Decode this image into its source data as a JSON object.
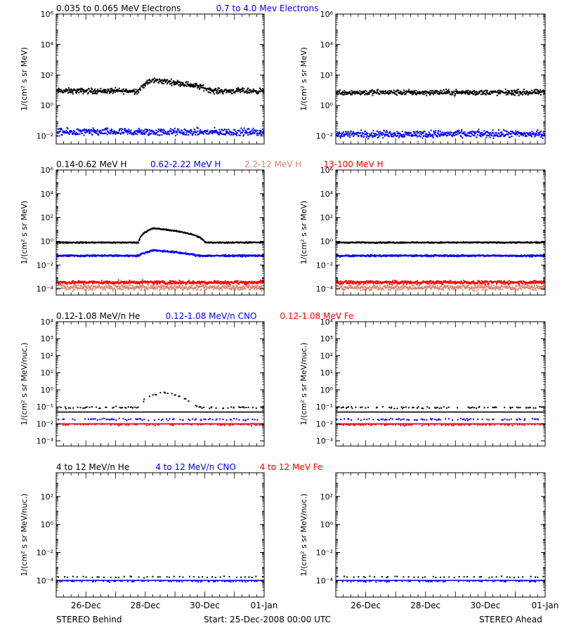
{
  "footer": {
    "left": "STEREO Behind",
    "center": "Start: 25-Dec-2008 00:00 UTC",
    "right": "STEREO Ahead"
  },
  "colors": {
    "black": "#000000",
    "blue": "#0000ff",
    "salmon": "#d8876f",
    "red": "#ff0000",
    "frame": "#000000"
  },
  "chart_data": [
    {
      "type": "scatter",
      "panel": "electrons",
      "labels": [
        {
          "text": "0.035 to 0.065 MeV Electrons",
          "color": "black"
        },
        {
          "text": "0.7 to 4.0 Mev Electrons",
          "color": "blue"
        }
      ],
      "ylabel": "1/(cm² s sr MeV)",
      "yscale": "log",
      "ylim": [
        0.003,
        1000000
      ],
      "yticks": [
        {
          "v": 0.01,
          "label": "10⁻²"
        },
        {
          "v": 1,
          "label": "10⁰"
        },
        {
          "v": 100,
          "label": "10²"
        },
        {
          "v": 10000,
          "label": "10⁴"
        },
        {
          "v": 1000000,
          "label": "10⁶"
        }
      ],
      "xlim": [
        "2008-12-25",
        "2009-01-01"
      ],
      "xticks": [
        "26-Dec",
        "28-Dec",
        "30-Dec",
        "01-Jan"
      ],
      "behind": {
        "series": [
          {
            "color": "black",
            "base": 10,
            "scatter_dex": 0.15,
            "event": {
              "start": "2008-12-27T18:00",
              "peak": "2008-12-28T06:00",
              "end": "2008-12-30T06:00",
              "peak_value": 50
            }
          },
          {
            "color": "blue",
            "base": 0.02,
            "scatter_dex": 0.2
          }
        ]
      },
      "ahead": {
        "series": [
          {
            "color": "black",
            "base": 8,
            "scatter_dex": 0.15
          },
          {
            "color": "blue",
            "base": 0.015,
            "scatter_dex": 0.2
          }
        ]
      }
    },
    {
      "type": "scatter",
      "panel": "protons",
      "labels": [
        {
          "text": "0.14-0.62 MeV H",
          "color": "black"
        },
        {
          "text": "0.62-2.22 MeV H",
          "color": "blue"
        },
        {
          "text": "2.2-12 MeV H",
          "color": "salmon"
        },
        {
          "text": "13-100 MeV H",
          "color": "red"
        }
      ],
      "ylabel": "1/(cm² s sr MeV)",
      "yscale": "log",
      "ylim": [
        3e-05,
        1000000
      ],
      "yticks": [
        {
          "v": 0.0001,
          "label": "10⁻⁴"
        },
        {
          "v": 0.01,
          "label": "10⁻²"
        },
        {
          "v": 1,
          "label": "10⁰"
        },
        {
          "v": 100,
          "label": "10²"
        },
        {
          "v": 10000,
          "label": "10⁴"
        },
        {
          "v": 1000000,
          "label": "10⁶"
        }
      ],
      "xlim": [
        "2008-12-25",
        "2009-01-01"
      ],
      "xticks": [
        "26-Dec",
        "28-Dec",
        "30-Dec",
        "01-Jan"
      ],
      "behind": {
        "series": [
          {
            "color": "black",
            "base": 0.9,
            "scatter_dex": 0.04,
            "event": {
              "start": "2008-12-27T18:00",
              "peak": "2008-12-28T06:00",
              "end": "2008-12-30T00:00",
              "peak_value": 14
            }
          },
          {
            "color": "blue",
            "base": 0.07,
            "scatter_dex": 0.06,
            "event": {
              "start": "2008-12-27T18:00",
              "peak": "2008-12-28T06:00",
              "end": "2008-12-29T18:00",
              "peak_value": 0.2
            }
          },
          {
            "color": "salmon",
            "base": 0.00015,
            "scatter_dex": 0.2
          },
          {
            "color": "red",
            "base": 0.0004,
            "scatter_dex": 0.12
          }
        ]
      },
      "ahead": {
        "series": [
          {
            "color": "black",
            "base": 0.9,
            "scatter_dex": 0.04
          },
          {
            "color": "blue",
            "base": 0.07,
            "scatter_dex": 0.06
          },
          {
            "color": "salmon",
            "base": 0.00015,
            "scatter_dex": 0.2
          },
          {
            "color": "red",
            "base": 0.0004,
            "scatter_dex": 0.12
          }
        ]
      }
    },
    {
      "type": "scatter",
      "panel": "heavy-low",
      "labels": [
        {
          "text": "0.12-1.08 MeV/n He",
          "color": "black"
        },
        {
          "text": "0.12-1.08 MeV/n CNO",
          "color": "blue"
        },
        {
          "text": "0.12-1.08 MeV Fe",
          "color": "red"
        }
      ],
      "ylabel": "1/(cm² s sr MeV/nuc.)",
      "yscale": "log",
      "ylim": [
        0.0005,
        10000
      ],
      "yticks": [
        {
          "v": 0.001,
          "label": "10⁻³"
        },
        {
          "v": 0.01,
          "label": "10⁻²"
        },
        {
          "v": 0.1,
          "label": "10⁻¹"
        },
        {
          "v": 1,
          "label": "10⁰"
        },
        {
          "v": 10,
          "label": "10¹"
        },
        {
          "v": 100,
          "label": "10²"
        },
        {
          "v": 1000,
          "label": "10³"
        },
        {
          "v": 10000,
          "label": "10⁴"
        }
      ],
      "xlim": [
        "2008-12-25",
        "2009-01-01"
      ],
      "xticks": [
        "26-Dec",
        "28-Dec",
        "30-Dec",
        "01-Jan"
      ],
      "behind": {
        "series": [
          {
            "color": "black",
            "base": 0.1,
            "floor_line": 0.05,
            "event": {
              "start": "2008-12-27T18:00",
              "peak": "2008-12-28T12:00",
              "end": "2008-12-29T18:00",
              "peak_value": 0.8
            }
          },
          {
            "color": "blue",
            "base": 0.02,
            "floor_line": 0.01
          },
          {
            "color": "red",
            "base": 0.01,
            "floor_line": 0.01
          }
        ]
      },
      "ahead": {
        "series": [
          {
            "color": "black",
            "base": 0.1,
            "floor_line": 0.05
          },
          {
            "color": "blue",
            "base": 0.02,
            "floor_line": 0.01
          },
          {
            "color": "red",
            "base": 0.01,
            "floor_line": 0.01
          }
        ]
      }
    },
    {
      "type": "scatter",
      "panel": "heavy-high",
      "labels": [
        {
          "text": "4 to 12 MeV/n He",
          "color": "black"
        },
        {
          "text": "4 to 12 MeV/n CNO",
          "color": "blue"
        },
        {
          "text": "4 to 12 MeV Fe",
          "color": "red"
        }
      ],
      "ylabel": "1/(cm² s sr MeV/nuc.)",
      "yscale": "log",
      "ylim": [
        6.5e-06,
        5000
      ],
      "yticks": [
        {
          "v": 0.0001,
          "label": "10⁻⁴"
        },
        {
          "v": 0.01,
          "label": "10⁻²"
        },
        {
          "v": 1,
          "label": "10⁰"
        },
        {
          "v": 100,
          "label": "10²"
        }
      ],
      "xlim": [
        "2008-12-25",
        "2009-01-01"
      ],
      "xticks": [
        "26-Dec",
        "28-Dec",
        "30-Dec",
        "01-Jan"
      ],
      "behind": {
        "series": [
          {
            "color": "black",
            "base": 0.0002,
            "sparse": true
          },
          {
            "color": "blue",
            "base": 0.0001,
            "floor_line": 0.0001
          }
        ]
      },
      "ahead": {
        "series": [
          {
            "color": "black",
            "base": 0.0002,
            "sparse": true
          },
          {
            "color": "blue",
            "base": 0.0001,
            "floor_line": 0.0001
          }
        ]
      }
    }
  ]
}
